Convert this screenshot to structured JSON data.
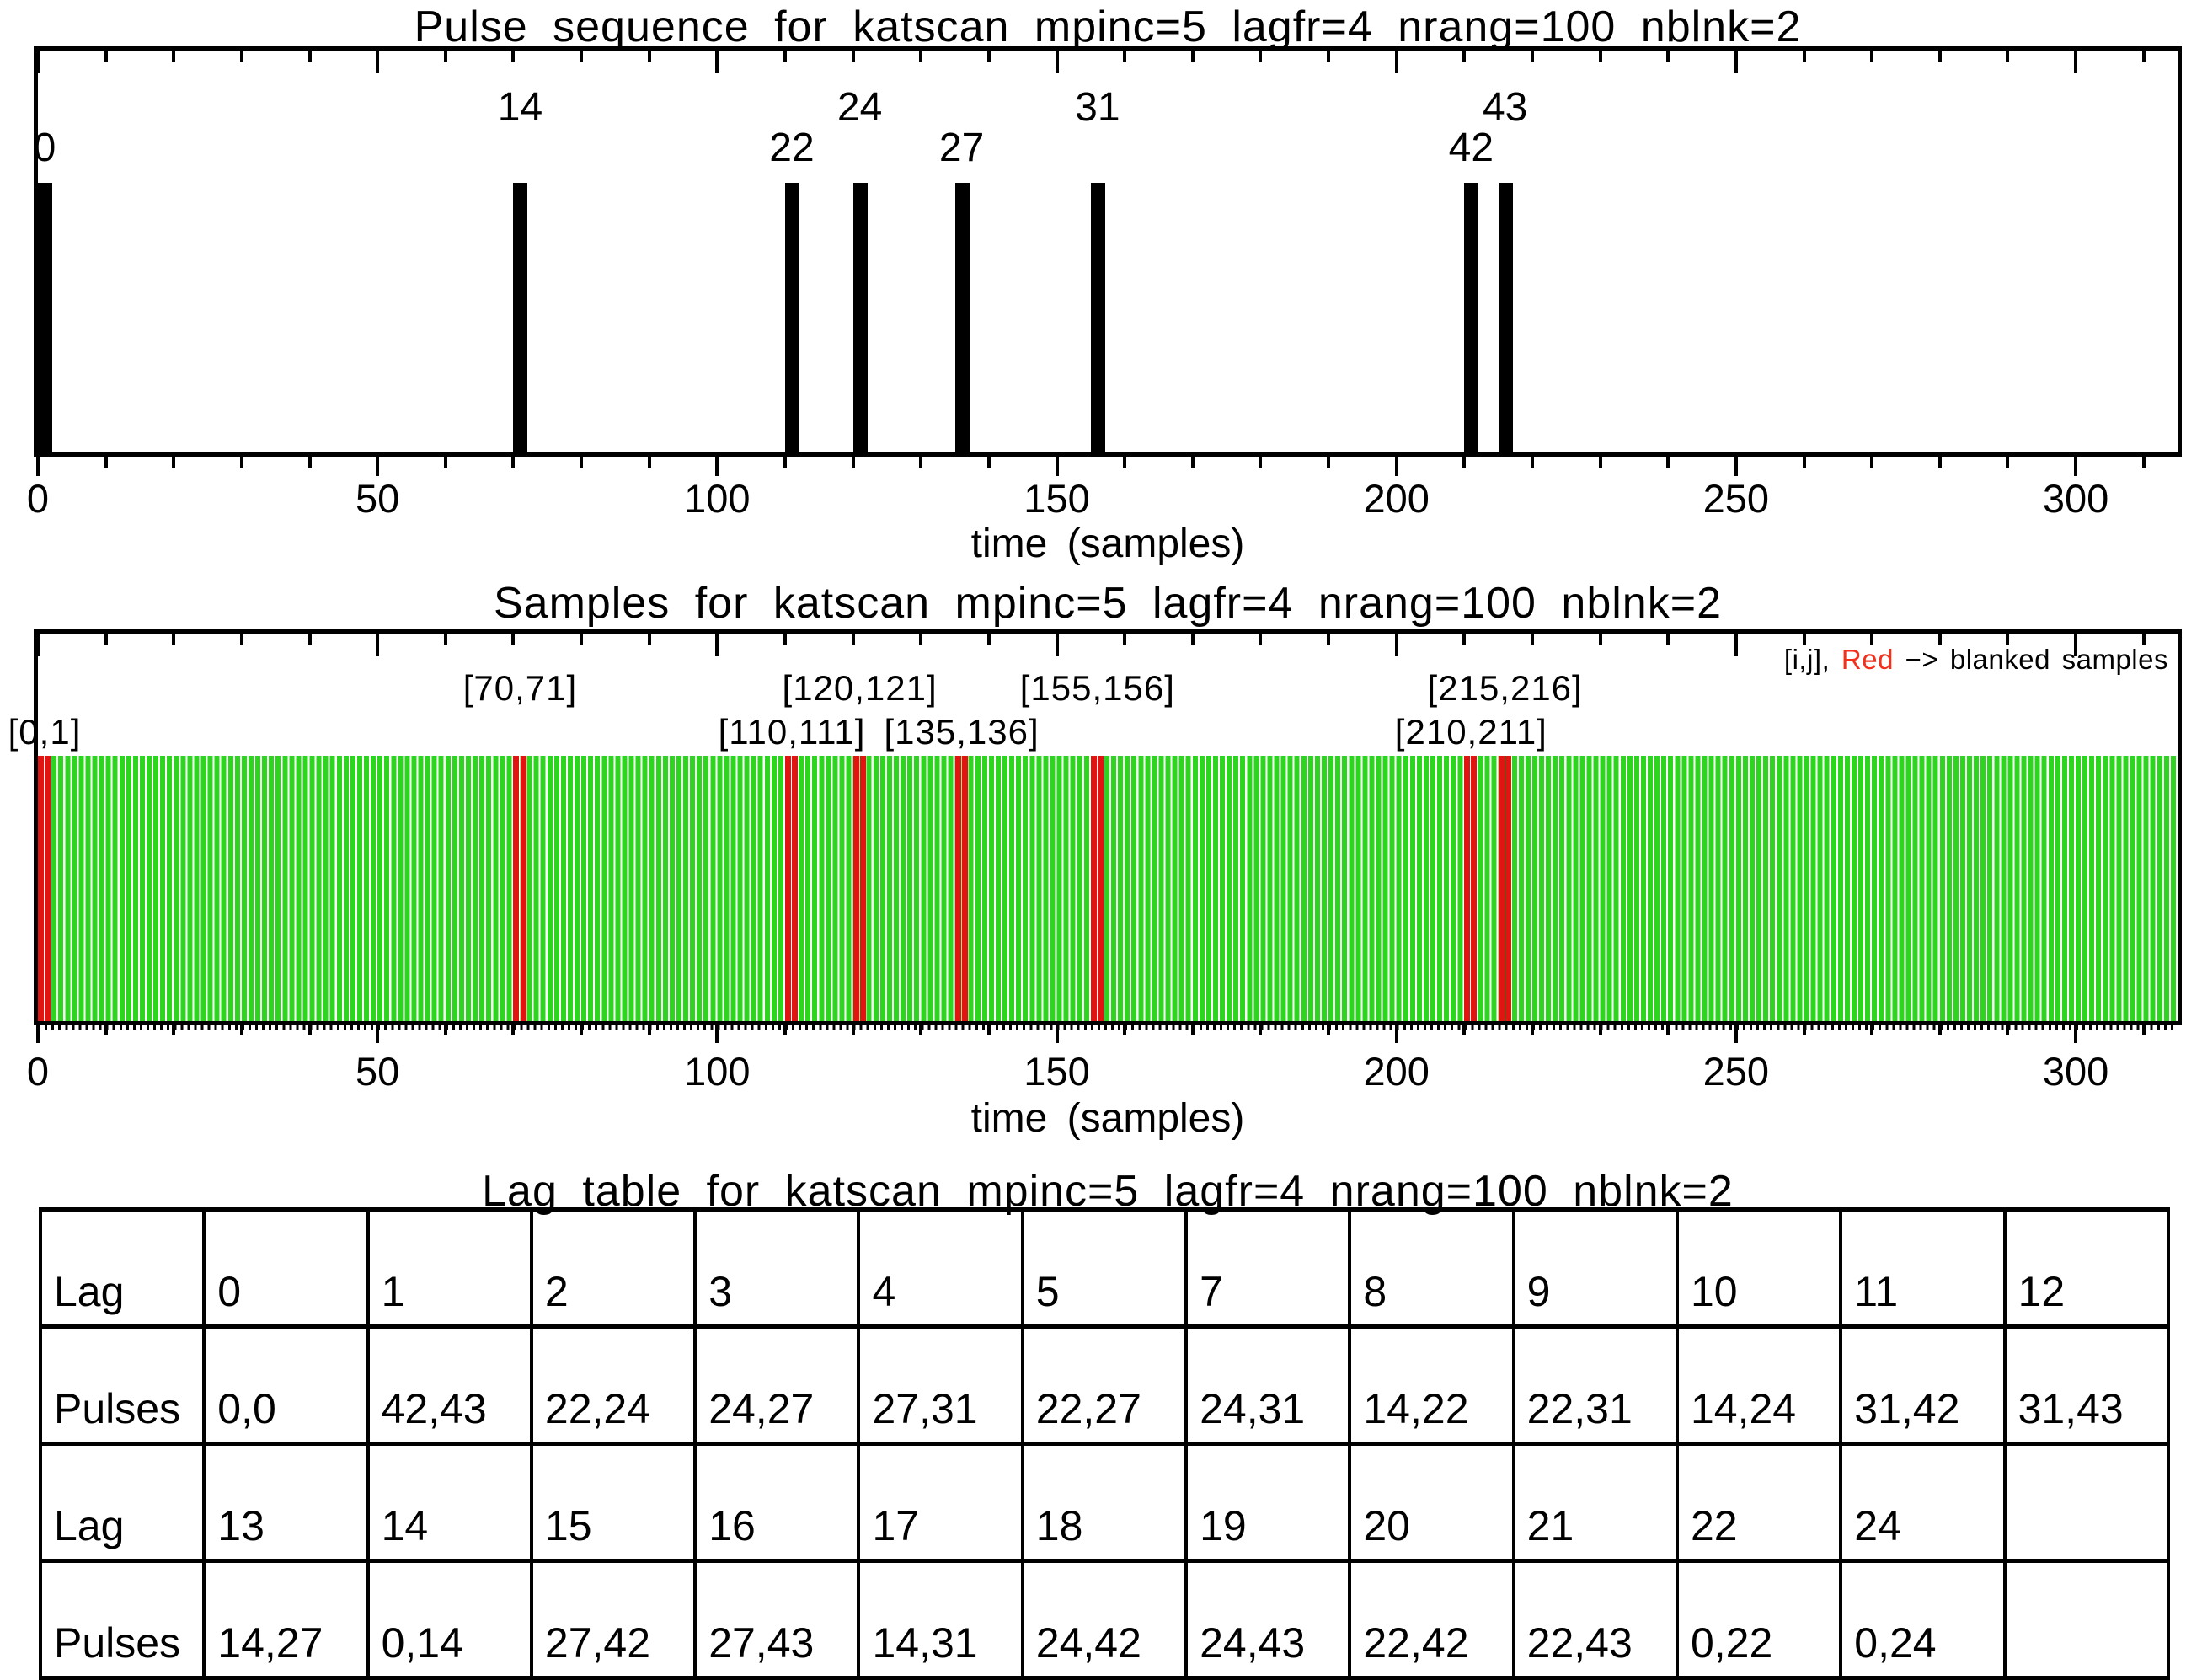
{
  "figure": {
    "background": "#ffffff",
    "axis_color": "#000000",
    "sample_green": "#2ed51f",
    "blanked_red": "#e01410",
    "legend_red": "#f2301c"
  },
  "pulse_panel": {
    "title": "Pulse sequence for katscan mpinc=5 lagfr=4 nrang=100 nblnk=2",
    "xlabel": "time (samples)",
    "xmax": 315,
    "xticks": [
      0,
      50,
      100,
      150,
      200,
      250,
      300
    ],
    "minor_step": 10,
    "pulses": [
      {
        "label": "0",
        "sample": 0,
        "tier": "low"
      },
      {
        "label": "14",
        "sample": 70,
        "tier": "high"
      },
      {
        "label": "22",
        "sample": 110,
        "tier": "low"
      },
      {
        "label": "24",
        "sample": 120,
        "tier": "high"
      },
      {
        "label": "27",
        "sample": 135,
        "tier": "low"
      },
      {
        "label": "31",
        "sample": 155,
        "tier": "high"
      },
      {
        "label": "42",
        "sample": 210,
        "tier": "low"
      },
      {
        "label": "43",
        "sample": 215,
        "tier": "high"
      }
    ]
  },
  "samples_panel": {
    "title": "Samples for katscan mpinc=5 lagfr=4 nrang=100 nblnk=2",
    "xlabel": "time (samples)",
    "xmax": 315,
    "xticks": [
      0,
      50,
      100,
      150,
      200,
      250,
      300
    ],
    "minor_step": 10,
    "total_samples": 315,
    "legend": {
      "prefix": "[i,j], ",
      "red_word": "Red",
      "suffix": " −> blanked samples"
    },
    "blank_pairs": [
      {
        "label": "[0,1]",
        "samples": [
          0,
          1
        ],
        "tier": "low"
      },
      {
        "label": "[70,71]",
        "samples": [
          70,
          71
        ],
        "tier": "high"
      },
      {
        "label": "[110,111]",
        "samples": [
          110,
          111
        ],
        "tier": "low"
      },
      {
        "label": "[120,121]",
        "samples": [
          120,
          121
        ],
        "tier": "high"
      },
      {
        "label": "[135,136]",
        "samples": [
          135,
          136
        ],
        "tier": "low"
      },
      {
        "label": "[155,156]",
        "samples": [
          155,
          156
        ],
        "tier": "high"
      },
      {
        "label": "[210,211]",
        "samples": [
          210,
          211
        ],
        "tier": "low"
      },
      {
        "label": "[215,216]",
        "samples": [
          215,
          216
        ],
        "tier": "high"
      }
    ]
  },
  "lag_table": {
    "title": "Lag table for katscan mpinc=5 lagfr=4 nrang=100 nblnk=2",
    "rows": [
      [
        "Lag",
        "0",
        "1",
        "2",
        "3",
        "4",
        "5",
        "7",
        "8",
        "9",
        "10",
        "11",
        "12"
      ],
      [
        "Pulses",
        "0,0",
        "42,43",
        "22,24",
        "24,27",
        "27,31",
        "22,27",
        "24,31",
        "14,22",
        "22,31",
        "14,24",
        "31,42",
        "31,43"
      ],
      [
        "Lag",
        "13",
        "14",
        "15",
        "16",
        "17",
        "18",
        "19",
        "20",
        "21",
        "22",
        "24",
        ""
      ],
      [
        "Pulses",
        "14,27",
        "0,14",
        "27,42",
        "27,43",
        "14,31",
        "24,42",
        "24,43",
        "22,42",
        "22,43",
        "0,22",
        "0,24",
        ""
      ]
    ]
  },
  "chart_data": [
    {
      "type": "bar",
      "title": "Pulse sequence for katscan mpinc=5 lagfr=4 nrang=100 nblnk=2",
      "xlabel": "time (samples)",
      "xlim": [
        0,
        315
      ],
      "xticks": [
        0,
        50,
        100,
        150,
        200,
        250,
        300
      ],
      "x_minor_step": 10,
      "categories": [
        "0",
        "14",
        "22",
        "24",
        "27",
        "31",
        "42",
        "43"
      ],
      "x": [
        0,
        70,
        110,
        120,
        135,
        155,
        210,
        215
      ],
      "values": [
        1,
        1,
        1,
        1,
        1,
        1,
        1,
        1
      ],
      "bar_width_samples": 2,
      "bar_color": "#000000",
      "annotation": "pulse numbers drawn above bars at alternating heights"
    },
    {
      "type": "bar",
      "title": "Samples for katscan mpinc=5 lagfr=4 nrang=100 nblnk=2",
      "xlabel": "time (samples)",
      "xlim": [
        0,
        315
      ],
      "xticks": [
        0,
        50,
        100,
        150,
        200,
        250,
        300
      ],
      "x_minor_step": 10,
      "x_description": "one bar per integer sample 0..314, all height 1",
      "sample_color": "#2ed51f",
      "blanked_color": "#e01410",
      "blanked_samples": [
        [
          0,
          1
        ],
        [
          70,
          71
        ],
        [
          110,
          111
        ],
        [
          120,
          121
        ],
        [
          135,
          136
        ],
        [
          155,
          156
        ],
        [
          210,
          211
        ],
        [
          215,
          216
        ]
      ],
      "legend": "[i,j], Red -> blanked samples",
      "legend_position": "top-right inside frame"
    },
    {
      "type": "table",
      "title": "Lag table for katscan mpinc=5 lagfr=4 nrang=100 nblnk=2",
      "rows": [
        [
          "Lag",
          "0",
          "1",
          "2",
          "3",
          "4",
          "5",
          "7",
          "8",
          "9",
          "10",
          "11",
          "12"
        ],
        [
          "Pulses",
          "0,0",
          "42,43",
          "22,24",
          "24,27",
          "27,31",
          "22,27",
          "24,31",
          "14,22",
          "22,31",
          "14,24",
          "31,42",
          "31,43"
        ],
        [
          "Lag",
          "13",
          "14",
          "15",
          "16",
          "17",
          "18",
          "19",
          "20",
          "21",
          "22",
          "24",
          ""
        ],
        [
          "Pulses",
          "14,27",
          "0,14",
          "27,42",
          "27,43",
          "14,31",
          "24,42",
          "24,43",
          "22,42",
          "22,43",
          "0,22",
          "0,24",
          ""
        ]
      ]
    }
  ]
}
